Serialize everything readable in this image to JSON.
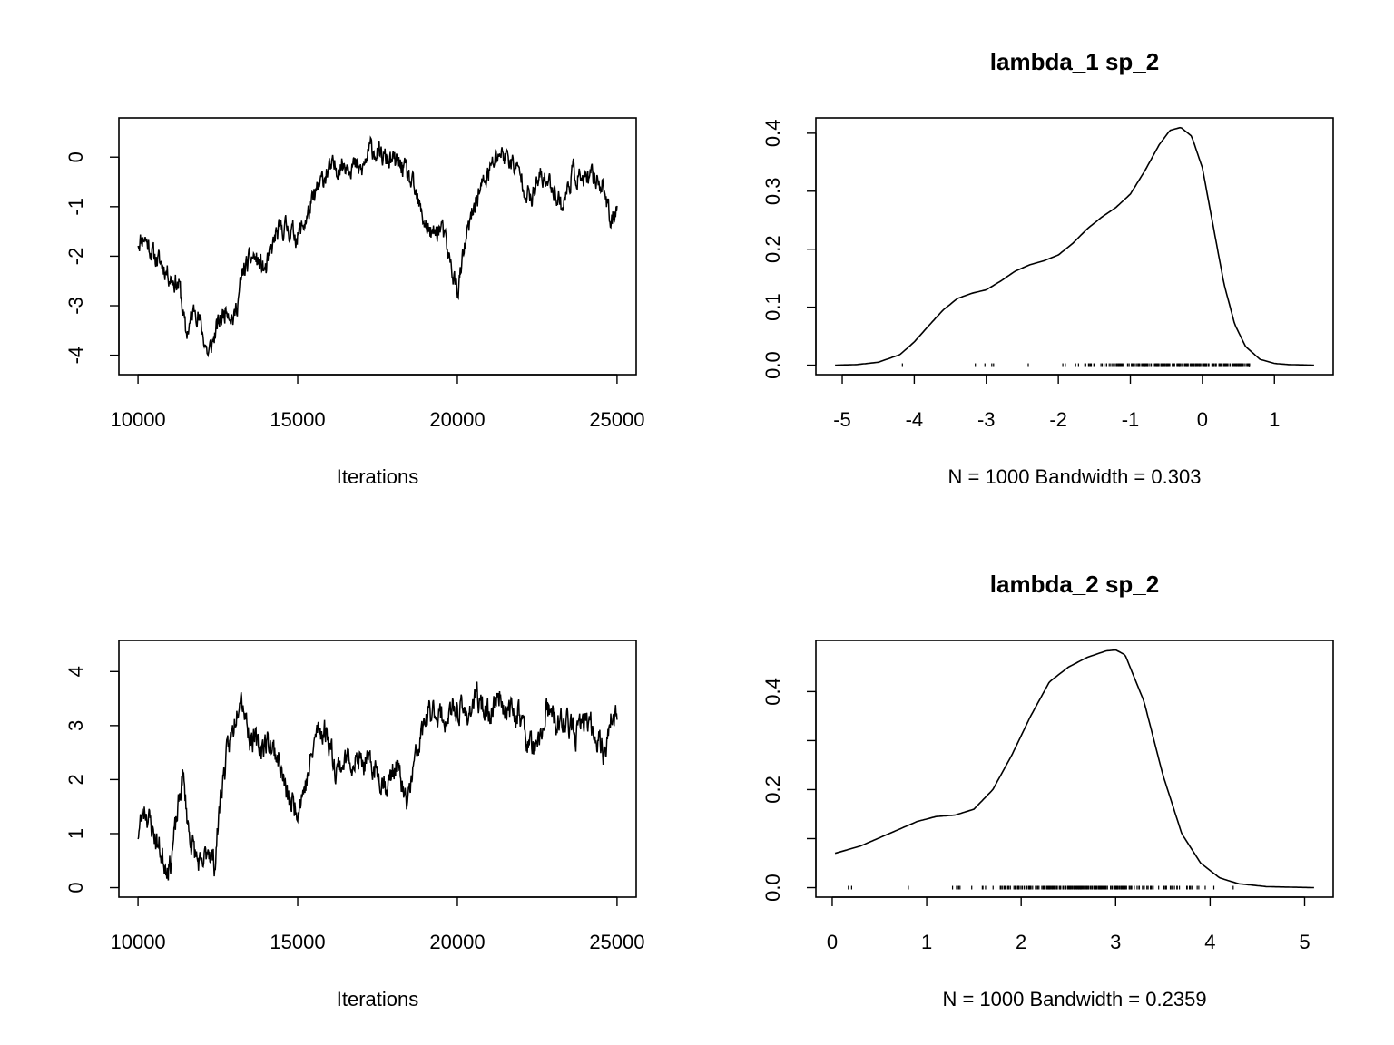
{
  "chart_data": [
    {
      "type": "line",
      "panel": "trace",
      "title": "",
      "xlabel": "Iterations",
      "ylabel": "",
      "xlim": [
        10000,
        25000
      ],
      "ylim": [
        -4.2,
        0.6
      ],
      "xticks": [
        10000,
        15000,
        20000,
        25000
      ],
      "yticks": [
        -4,
        -3,
        -2,
        -1,
        0
      ],
      "x_key": [
        10000,
        10200,
        10500,
        10800,
        11000,
        11300,
        11500,
        11800,
        12000,
        12200,
        12500,
        12800,
        13000,
        13300,
        13600,
        14000,
        14300,
        14600,
        15000,
        15300,
        15600,
        15900,
        16200,
        16600,
        17000,
        17300,
        17600,
        18000,
        18300,
        18600,
        18900,
        19200,
        19500,
        19800,
        20000,
        20300,
        20600,
        21000,
        21300,
        21600,
        22000,
        22300,
        22600,
        23000,
        23300,
        23600,
        24000,
        24300,
        24600,
        24800,
        25000
      ],
      "y_key": [
        -1.7,
        -1.6,
        -2.0,
        -2.2,
        -2.4,
        -2.6,
        -3.6,
        -3.0,
        -3.5,
        -4.0,
        -3.4,
        -3.0,
        -3.3,
        -2.3,
        -2.0,
        -2.3,
        -1.6,
        -1.4,
        -1.6,
        -1.2,
        -0.7,
        -0.3,
        -0.2,
        -0.1,
        -0.3,
        0.2,
        0.0,
        -0.1,
        -0.2,
        -0.6,
        -1.2,
        -1.6,
        -1.4,
        -2.2,
        -2.7,
        -1.6,
        -0.8,
        -0.3,
        0.1,
        0.0,
        -0.4,
        -0.9,
        -0.4,
        -0.6,
        -1.0,
        -0.3,
        -0.5,
        -0.4,
        -0.6,
        -1.4,
        -0.9
      ],
      "n_points": 1000,
      "noise": 0.18,
      "seed": 11
    },
    {
      "type": "line",
      "panel": "density",
      "title": "lambda_1 sp_2",
      "xlabel": "N = 1000   Bandwidth = 0.303",
      "ylabel": "",
      "xlim": [
        -5.1,
        1.55
      ],
      "ylim": [
        0,
        0.41
      ],
      "xticks": [
        -5,
        -4,
        -3,
        -2,
        -1,
        0,
        1
      ],
      "yticks": [
        0.0,
        0.1,
        0.2,
        0.3,
        0.4
      ],
      "ytick_labels": [
        "0.0",
        "0.1",
        "0.2",
        "0.3",
        "0.4"
      ],
      "x": [
        -5.1,
        -4.8,
        -4.5,
        -4.2,
        -4.0,
        -3.8,
        -3.6,
        -3.4,
        -3.2,
        -3.0,
        -2.8,
        -2.6,
        -2.4,
        -2.2,
        -2.0,
        -1.8,
        -1.6,
        -1.4,
        -1.2,
        -1.0,
        -0.8,
        -0.6,
        -0.45,
        -0.3,
        -0.15,
        0.0,
        0.15,
        0.3,
        0.45,
        0.6,
        0.8,
        1.0,
        1.2,
        1.55
      ],
      "y": [
        0.0,
        0.001,
        0.005,
        0.018,
        0.04,
        0.068,
        0.095,
        0.115,
        0.124,
        0.13,
        0.145,
        0.162,
        0.173,
        0.18,
        0.19,
        0.21,
        0.235,
        0.255,
        0.272,
        0.295,
        0.335,
        0.38,
        0.405,
        0.41,
        0.395,
        0.34,
        0.24,
        0.14,
        0.07,
        0.032,
        0.01,
        0.003,
        0.001,
        0.0
      ],
      "rug_range": [
        -4.2,
        0.65
      ],
      "rug_peak": -0.3,
      "rug_sd": 1.0
    },
    {
      "type": "line",
      "panel": "trace",
      "title": "",
      "xlabel": "Iterations",
      "ylabel": "",
      "xlim": [
        10000,
        25000
      ],
      "ylim": [
        0,
        4.4
      ],
      "xticks": [
        10000,
        15000,
        20000,
        25000
      ],
      "yticks": [
        0,
        1,
        2,
        3,
        4
      ],
      "x_key": [
        10000,
        10200,
        10500,
        10800,
        11000,
        11200,
        11400,
        11600,
        11800,
        12000,
        12200,
        12400,
        12600,
        12800,
        13000,
        13200,
        13500,
        13800,
        14100,
        14400,
        14700,
        15000,
        15300,
        15600,
        15900,
        16200,
        16600,
        17000,
        17400,
        17800,
        18100,
        18400,
        18700,
        19000,
        19300,
        19600,
        20000,
        20300,
        20600,
        21000,
        21300,
        21600,
        21900,
        22200,
        22500,
        22800,
        23100,
        23400,
        23700,
        24000,
        24300,
        24600,
        24800,
        25000
      ],
      "y_key": [
        1.0,
        1.5,
        1.0,
        0.5,
        0.4,
        1.2,
        2.1,
        1.0,
        0.6,
        0.3,
        0.8,
        0.4,
        1.8,
        2.5,
        3.0,
        3.7,
        2.8,
        2.6,
        2.7,
        2.4,
        1.6,
        1.5,
        2.0,
        2.9,
        2.9,
        2.2,
        2.4,
        2.3,
        2.2,
        1.9,
        2.3,
        1.5,
        2.4,
        3.1,
        3.3,
        3.1,
        3.3,
        3.2,
        3.5,
        3.2,
        3.6,
        3.2,
        3.3,
        2.7,
        2.5,
        3.3,
        3.0,
        3.1,
        2.8,
        3.1,
        2.9,
        2.5,
        3.1,
        3.1
      ],
      "n_points": 1000,
      "noise": 0.2,
      "seed": 23
    },
    {
      "type": "line",
      "panel": "density",
      "title": "lambda_2 sp_2",
      "xlabel": "N = 1000   Bandwidth = 0.2359",
      "ylabel": "",
      "xlim": [
        0.03,
        5.1
      ],
      "ylim": [
        0,
        0.485
      ],
      "xticks": [
        0,
        1,
        2,
        3,
        4,
        5
      ],
      "yticks": [
        0.0,
        0.1,
        0.2,
        0.3,
        0.4
      ],
      "ytick_labels": [
        "0.0",
        "",
        "0.2",
        "",
        "0.4"
      ],
      "x": [
        0.03,
        0.3,
        0.6,
        0.9,
        1.1,
        1.3,
        1.5,
        1.7,
        1.9,
        2.1,
        2.3,
        2.5,
        2.7,
        2.9,
        3.0,
        3.1,
        3.3,
        3.5,
        3.7,
        3.9,
        4.1,
        4.3,
        4.6,
        5.1
      ],
      "y": [
        0.07,
        0.085,
        0.11,
        0.135,
        0.145,
        0.148,
        0.16,
        0.2,
        0.27,
        0.35,
        0.42,
        0.45,
        0.47,
        0.483,
        0.485,
        0.475,
        0.38,
        0.23,
        0.11,
        0.05,
        0.02,
        0.008,
        0.002,
        0.0
      ],
      "rug_range": [
        0.04,
        4.4
      ],
      "rug_peak": 2.7,
      "rug_sd": 0.85
    }
  ]
}
